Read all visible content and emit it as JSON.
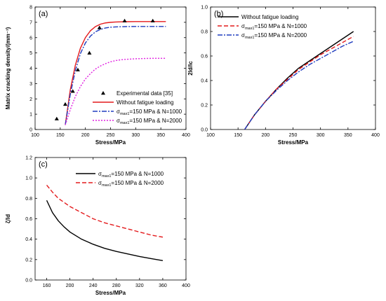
{
  "chart_data": [
    {
      "id": "a",
      "type": "line",
      "panel_label": "(a)",
      "xlabel": "Stress/MPa",
      "ylabel": "Matrix cracking density/(mm⁻¹)",
      "xlim": [
        100,
        400
      ],
      "ylim": [
        0,
        8
      ],
      "xticks": [
        100,
        150,
        200,
        250,
        300,
        350,
        400
      ],
      "yticks": [
        0,
        1,
        2,
        3,
        4,
        5,
        6,
        7,
        8
      ],
      "legend_position": "bottom-right",
      "scatter": {
        "name": "Experimental data [35]",
        "color": "#000000",
        "x": [
          143,
          160,
          175,
          185,
          208,
          228,
          278,
          334
        ],
        "y": [
          0.7,
          1.65,
          2.5,
          3.9,
          5.0,
          6.65,
          7.1,
          7.1
        ]
      },
      "series": [
        {
          "name": "Without fatigue loading",
          "color": "#e41a1c",
          "dash": "",
          "x": [
            160,
            170,
            180,
            190,
            200,
            210,
            220,
            230,
            240,
            250,
            260,
            270,
            280,
            300,
            320,
            340,
            360
          ],
          "y": [
            0.3,
            2.6,
            4.2,
            5.3,
            6.0,
            6.45,
            6.72,
            6.88,
            6.96,
            7.0,
            7.02,
            7.03,
            7.04,
            7.05,
            7.05,
            7.05,
            7.05
          ]
        },
        {
          "name": "σmax1=150 MPa & N=1000",
          "label_main": "σ",
          "label_sub": "max1",
          "label_rest": "=150 MPa & N=1000",
          "color": "#1f3cbf",
          "dash": "7 2 2 2",
          "x": [
            160,
            170,
            180,
            190,
            200,
            210,
            220,
            230,
            240,
            250,
            260,
            270,
            280,
            300,
            320,
            340,
            360
          ],
          "y": [
            0.3,
            2.3,
            3.85,
            4.95,
            5.65,
            6.1,
            6.38,
            6.54,
            6.63,
            6.68,
            6.7,
            6.71,
            6.72,
            6.73,
            6.73,
            6.73,
            6.73
          ]
        },
        {
          "name": "σmax1=150 MPa & N=2000",
          "label_main": "σ",
          "label_sub": "max1",
          "label_rest": "=150 MPa & N=2000",
          "color": "#e020e0",
          "dash": "2 2",
          "x": [
            160,
            170,
            180,
            190,
            200,
            210,
            220,
            230,
            240,
            250,
            260,
            270,
            280,
            300,
            320,
            340,
            360
          ],
          "y": [
            0.3,
            1.3,
            2.15,
            2.8,
            3.3,
            3.65,
            3.95,
            4.15,
            4.3,
            4.42,
            4.5,
            4.55,
            4.58,
            4.62,
            4.64,
            4.65,
            4.65
          ]
        }
      ]
    },
    {
      "id": "b",
      "type": "line",
      "panel_label": "(b)",
      "xlabel": "Stress/MPa",
      "ylabel": "2ld/lc",
      "xlim": [
        100,
        400
      ],
      "ylim": [
        0,
        1.0
      ],
      "xticks": [
        100,
        150,
        200,
        250,
        300,
        350,
        400
      ],
      "yticks": [
        0.0,
        0.2,
        0.4,
        0.6,
        0.8,
        1.0
      ],
      "legend_position": "top-left",
      "series": [
        {
          "name": "Without fatigue loading",
          "color": "#000000",
          "dash": "",
          "x": [
            162,
            180,
            200,
            220,
            240,
            260,
            280,
            300,
            320,
            340,
            360
          ],
          "y": [
            0.0,
            0.12,
            0.23,
            0.33,
            0.42,
            0.5,
            0.56,
            0.62,
            0.68,
            0.74,
            0.8
          ]
        },
        {
          "name": "σmax1=150 MPa & N=1000",
          "label_main": "σ",
          "label_sub": "max1",
          "label_rest": "=150 MPa & N=1000",
          "color": "#e41a1c",
          "dash": "6 3",
          "x": [
            162,
            180,
            200,
            220,
            240,
            260,
            280,
            300,
            320,
            340,
            360
          ],
          "y": [
            0.0,
            0.12,
            0.23,
            0.33,
            0.41,
            0.49,
            0.55,
            0.61,
            0.66,
            0.71,
            0.76
          ]
        },
        {
          "name": "σmax1=150 MPa & N=2000",
          "label_main": "σ",
          "label_sub": "max1",
          "label_rest": "=150 MPa & N=2000",
          "color": "#1f3cbf",
          "dash": "7 2 2 2",
          "x": [
            162,
            180,
            200,
            220,
            240,
            260,
            280,
            300,
            320,
            340,
            360
          ],
          "y": [
            0.0,
            0.12,
            0.23,
            0.32,
            0.4,
            0.47,
            0.53,
            0.58,
            0.63,
            0.68,
            0.72
          ]
        }
      ]
    },
    {
      "id": "c",
      "type": "line",
      "panel_label": "(c)",
      "xlabel": "Stress/MPa",
      "ylabel": "ζ/ld",
      "xlim": [
        140,
        400
      ],
      "ylim": [
        0,
        1.2
      ],
      "xticks": [
        160,
        200,
        240,
        280,
        320,
        360,
        400
      ],
      "yticks": [
        0.0,
        0.2,
        0.4,
        0.6,
        0.8,
        1.0,
        1.2
      ],
      "legend_position": "top-right",
      "series": [
        {
          "name": "σmax1=150 MPa & N=1000",
          "label_main": "σ",
          "label_sub": "max1",
          "label_rest": "=150 MPa & N=1000",
          "color": "#000000",
          "dash": "",
          "x": [
            160,
            170,
            180,
            190,
            200,
            220,
            240,
            260,
            280,
            300,
            320,
            340,
            360
          ],
          "y": [
            0.78,
            0.66,
            0.58,
            0.52,
            0.47,
            0.4,
            0.35,
            0.31,
            0.28,
            0.255,
            0.23,
            0.21,
            0.19
          ]
        },
        {
          "name": "σmax1=150 MPa & N=2000",
          "label_main": "σ",
          "label_sub": "max1",
          "label_rest": "=150 MPa & N=2000",
          "color": "#e41a1c",
          "dash": "6 3",
          "x": [
            160,
            170,
            180,
            190,
            200,
            220,
            240,
            260,
            280,
            300,
            320,
            340,
            360
          ],
          "y": [
            0.93,
            0.86,
            0.8,
            0.76,
            0.72,
            0.66,
            0.6,
            0.56,
            0.53,
            0.5,
            0.47,
            0.44,
            0.42
          ]
        }
      ]
    }
  ]
}
